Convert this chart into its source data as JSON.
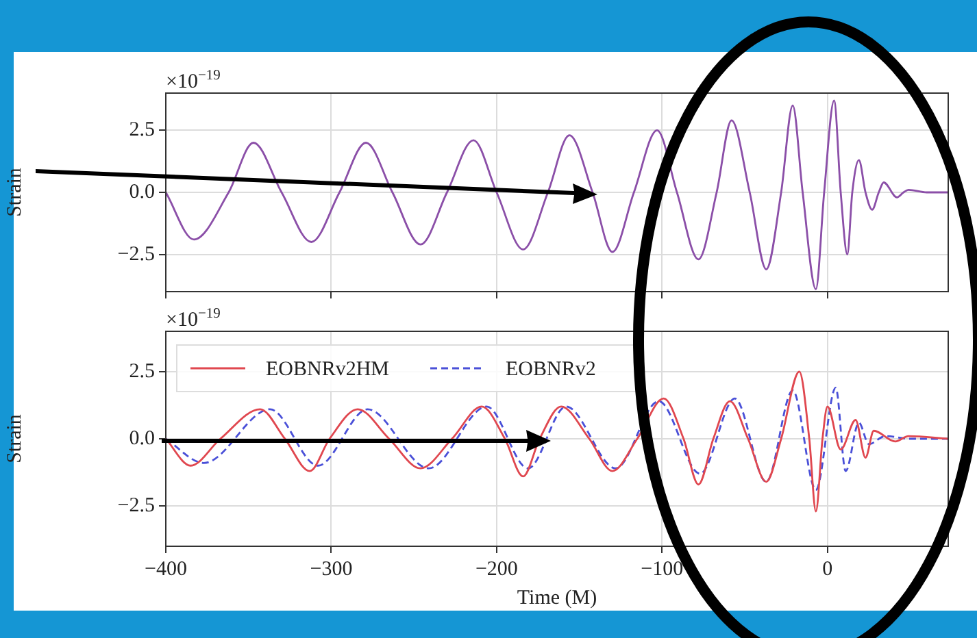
{
  "chart_data": [
    {
      "type": "line",
      "ylabel": "Strain",
      "annotations": [
        "×10$^{−19}$"
      ],
      "x": [
        -400,
        -383,
        -362,
        -347,
        -330,
        -312,
        -295,
        -279,
        -263,
        -246,
        -230,
        -214,
        -200,
        -184,
        -169,
        -156,
        -142,
        -130,
        -117,
        -103,
        -91,
        -78,
        -67,
        -58,
        -47,
        -37,
        -28,
        -21,
        -15,
        -7,
        -2,
        4,
        8,
        12,
        15,
        19,
        23,
        27,
        31,
        34,
        42,
        46,
        49,
        60,
        73
      ],
      "values": [
        0,
        -1.9,
        0,
        2.0,
        0,
        -2.0,
        0,
        2.0,
        0,
        -2.1,
        0,
        2.1,
        0,
        -2.3,
        0,
        2.3,
        0,
        -2.4,
        0,
        2.5,
        0,
        -2.7,
        0,
        2.9,
        0,
        -3.1,
        0,
        3.5,
        0,
        -3.9,
        0,
        3.7,
        0,
        -2.5,
        0,
        1.3,
        0,
        -0.7,
        0,
        0.4,
        -0.2,
        0,
        0.1,
        0,
        0
      ],
      "color": "#8b4fa8",
      "xlim": [
        -400,
        73
      ],
      "xticks": [
        -400,
        -300,
        -200,
        -100,
        0
      ],
      "ylim": [
        -4,
        4
      ],
      "yticks": [
        {
          "value": -2.5,
          "label": "−2.5"
        },
        {
          "value": 0,
          "label": "0.0"
        },
        {
          "value": 2.5,
          "label": "2.5"
        }
      ],
      "tick_labels": "y",
      "grid": true,
      "marker": "none"
    },
    {
      "type": "line",
      "xlabel": "Time (M)",
      "ylabel": "Strain",
      "annotations": [
        "×10$^{−19}$"
      ],
      "series": [
        {
          "name": "EOBNRv2HM",
          "color": "#e0474f",
          "line_style": "solid",
          "x": [
            -400,
            -385,
            -367,
            -343,
            -328,
            -313,
            -301,
            -284,
            -265,
            -246,
            -227,
            -209,
            -195,
            -184,
            -174,
            -161,
            -144,
            -130,
            -115,
            -99,
            -87,
            -78,
            -69,
            -59,
            -48,
            -37,
            -28,
            -17,
            -11,
            -7,
            -3,
            0,
            8,
            17,
            23,
            28,
            41,
            49,
            73
          ],
          "values": [
            0,
            -1.0,
            0,
            1.1,
            0,
            -1.2,
            0,
            1.1,
            0,
            -1.1,
            0,
            1.2,
            0,
            -1.4,
            0,
            1.2,
            0,
            -1.2,
            0,
            1.5,
            0,
            -1.7,
            0,
            1.4,
            0,
            -1.6,
            0,
            2.5,
            0,
            -2.7,
            0,
            1.2,
            -0.4,
            0.7,
            -0.7,
            0.3,
            -0.1,
            0.1,
            0
          ]
        },
        {
          "name": "EOBNRv2",
          "color": "#4a50d8",
          "line_style": "dashed",
          "x": [
            -400,
            -377,
            -337,
            -308,
            -278,
            -241,
            -206,
            -181,
            -158,
            -128,
            -102,
            -77,
            -56,
            -37,
            -21,
            -7,
            5,
            11,
            19,
            25,
            35,
            50,
            73
          ],
          "values": [
            0,
            -0.9,
            1.1,
            -1.0,
            1.1,
            -1.1,
            1.2,
            -1.1,
            1.2,
            -1.1,
            1.4,
            -1.3,
            1.5,
            -1.6,
            1.8,
            -1.9,
            1.9,
            -1.2,
            0.6,
            -0.2,
            0.1,
            0,
            0
          ]
        }
      ],
      "xlim": [
        -400,
        73
      ],
      "xticks": [
        {
          "value": -400,
          "label": "−400"
        },
        {
          "value": -300,
          "label": "−300"
        },
        {
          "value": -200,
          "label": "−200"
        },
        {
          "value": -100,
          "label": "−100"
        },
        0
      ],
      "ylim": [
        -4,
        4
      ],
      "yticks": [
        {
          "value": -2.5,
          "label": "−2.5"
        },
        {
          "value": 0,
          "label": "0.0"
        },
        {
          "value": 2.5,
          "label": "2.5"
        }
      ],
      "grid": true,
      "legend": "top left",
      "marker": "none"
    }
  ]
}
